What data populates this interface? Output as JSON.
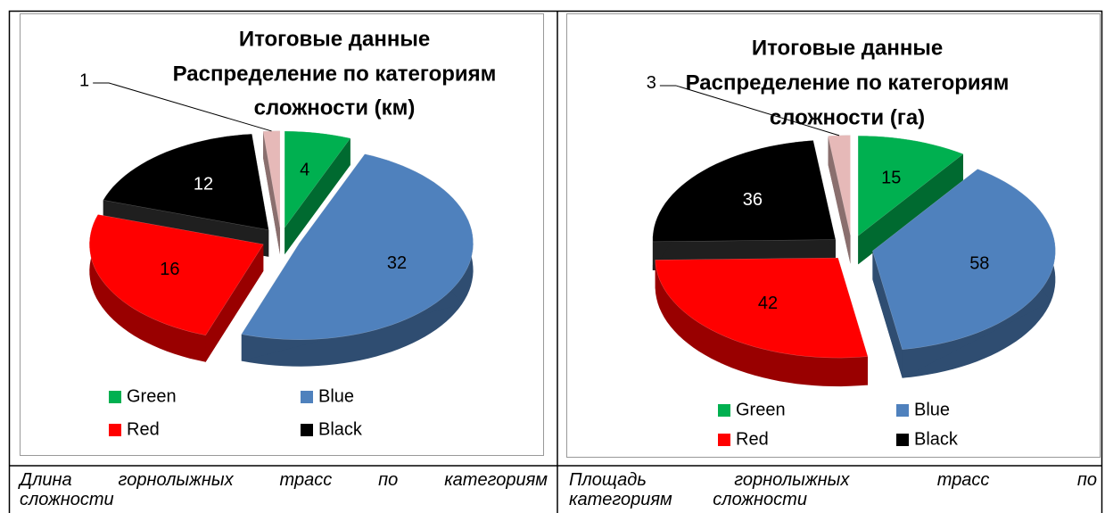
{
  "chart_data": [
    {
      "type": "pie",
      "title": [
        "Итоговые данные",
        "Распределение по категориям",
        "сложности (км)"
      ],
      "categories": [
        "Green",
        "Blue",
        "Red",
        "Black",
        null
      ],
      "values": [
        4,
        32,
        16,
        12,
        1
      ],
      "colors": [
        "#00b050",
        "#4f81bd",
        "#ff0000",
        "#000000",
        "#e6b9b8"
      ],
      "legend": "bottom"
    },
    {
      "type": "pie",
      "title": [
        "Итоговые данные",
        "Распределение по категориям",
        "сложности (га)"
      ],
      "categories": [
        "Green",
        "Blue",
        "Red",
        "Black",
        null
      ],
      "values": [
        15,
        58,
        42,
        36,
        3
      ],
      "colors": [
        "#00b050",
        "#4f81bd",
        "#ff0000",
        "#000000",
        "#e6b9b8"
      ],
      "legend": "bottom"
    }
  ],
  "captions": [
    "Длина горнолыжных трасс по категориям сложности",
    "Площадь горнолыжных трасс по категориям сложности"
  ]
}
